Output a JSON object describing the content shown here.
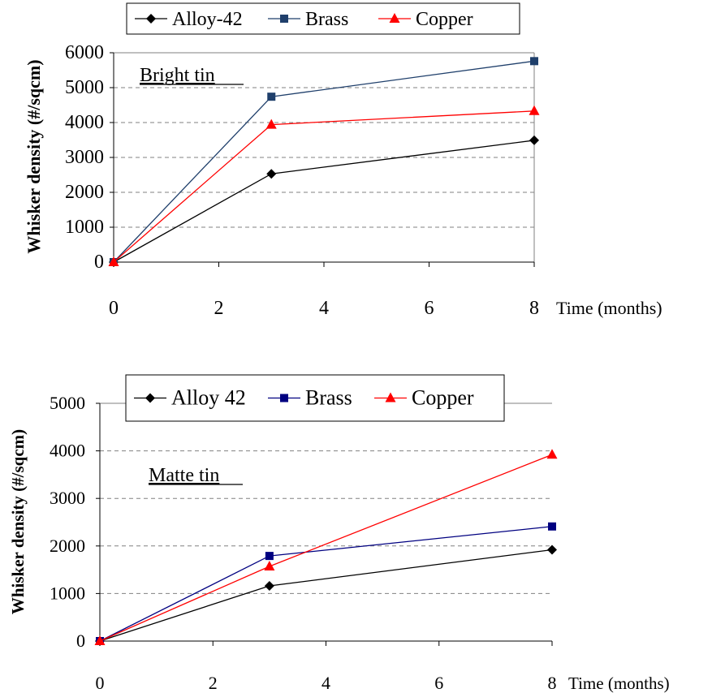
{
  "chart_data": [
    {
      "type": "line",
      "annotation": "Bright tin",
      "x": [
        0,
        3,
        8
      ],
      "xticks": [
        0,
        2,
        4,
        6,
        8
      ],
      "xlabel": "Time (months)",
      "ylabel": "Whisker density (#/sqcm)",
      "yticks": [
        0,
        1000,
        2000,
        3000,
        4000,
        5000,
        6000
      ],
      "xlim": [
        0,
        8
      ],
      "ylim": [
        0,
        6000
      ],
      "grid": "horizontal dashed",
      "legend_placement": "top",
      "series": [
        {
          "name": "Alloy-42",
          "values": [
            0,
            2530,
            3490
          ],
          "color": "#000000",
          "marker": "diamond"
        },
        {
          "name": "Brass",
          "values": [
            0,
            4740,
            5760
          ],
          "color": "#1f3f6b",
          "marker": "square"
        },
        {
          "name": "Copper",
          "values": [
            0,
            3940,
            4330
          ],
          "color": "#ff0000",
          "marker": "triangle"
        }
      ]
    },
    {
      "type": "line",
      "annotation": "Matte tin",
      "x": [
        0,
        3,
        8
      ],
      "xticks": [
        0,
        2,
        4,
        6,
        8
      ],
      "xlabel": "Time (months)",
      "ylabel": "Whisker density (#/sqcm)",
      "yticks": [
        0,
        1000,
        2000,
        3000,
        4000,
        5000
      ],
      "xlim": [
        0,
        8
      ],
      "ylim": [
        0,
        5000
      ],
      "grid": "horizontal dashed",
      "legend_placement": "top",
      "series": [
        {
          "name": "Alloy 42",
          "values": [
            0,
            1160,
            1920
          ],
          "color": "#000000",
          "marker": "diamond"
        },
        {
          "name": "Brass",
          "values": [
            0,
            1790,
            2410
          ],
          "color": "#000080",
          "marker": "square"
        },
        {
          "name": "Copper",
          "values": [
            0,
            1570,
            3920
          ],
          "color": "#ff0000",
          "marker": "triangle"
        }
      ]
    }
  ]
}
